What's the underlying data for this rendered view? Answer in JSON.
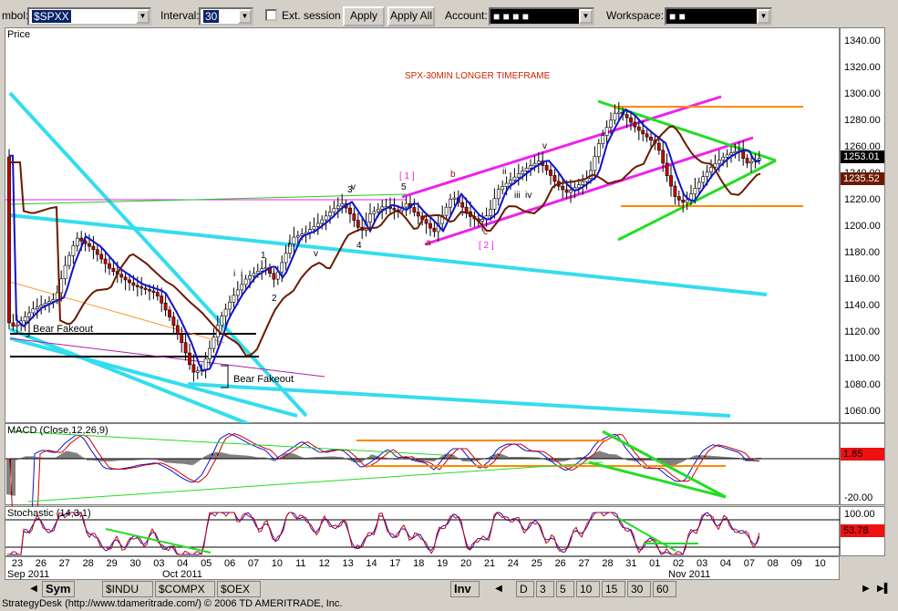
{
  "toolbar": {
    "symbol_label": "mbol:",
    "symbol_value": "$SPXX",
    "interval_label": "Interval:",
    "interval_value": "30",
    "ext_session_label": "Ext. session",
    "apply_label": "Apply",
    "apply_all_label": "Apply All",
    "account_label": "Account:",
    "account_value": "■ ■ ■ ■",
    "workspace_label": "Workspace:",
    "workspace_value": "■ ■"
  },
  "price_panel": {
    "title": "Price",
    "annotation": "SPX-30MIN LONGER TIMEFRAME",
    "yticks": [
      "1340.00",
      "1320.00",
      "1300.00",
      "1280.00",
      "1260.00",
      "1240.00",
      "1220.00",
      "1200.00",
      "1180.00",
      "1160.00",
      "1140.00",
      "1120.00",
      "1100.00",
      "1080.00",
      "1060.00"
    ],
    "last_price": "1253.01",
    "ma_value": "1235.52",
    "labels": {
      "bear1": "Bear Fakeout",
      "bear2": "Bear Fakeout",
      "w1": "1",
      "w2": "2",
      "w3": "3",
      "w4": "4",
      "w5": "5",
      "bk1": "[ 1 ]",
      "bk2": "[ 2 ]",
      "a": "a",
      "b": "b",
      "c": "c",
      "i1": "i",
      "i2": "i",
      "i3": "i",
      "ii": "ii",
      "iii": "iii",
      "iv": "iv",
      "v1": "v",
      "v2": "v",
      "v3": "v"
    }
  },
  "macd_panel": {
    "title": "MACD (Close,12,26,9)",
    "value": "1.85",
    "ytick_low": "-20.00"
  },
  "stoch_panel": {
    "title": "Stochastic (14,3,1)",
    "ytick_high": "100.00",
    "value": "53.78"
  },
  "xaxis": {
    "ticks": [
      "23",
      "26",
      "27",
      "28",
      "29",
      "30",
      "03",
      "04",
      "05",
      "06",
      "07",
      "10",
      "11",
      "12",
      "13",
      "14",
      "17",
      "18",
      "19",
      "20",
      "21",
      "24",
      "25",
      "26",
      "27",
      "28",
      "31",
      "01",
      "02",
      "03",
      "04",
      "07",
      "08",
      "09",
      "10"
    ],
    "month1": "Sep 2011",
    "month2": "Oct 2011",
    "month3": "Nov 2011"
  },
  "tabs": {
    "sym": "Sym",
    "indu": "$INDU",
    "compx": "$COMPX",
    "oex": "$OEX",
    "inv": "Inv",
    "d": "D",
    "i3": "3",
    "i5": "5",
    "i10": "10",
    "i15": "15",
    "i30": "30",
    "i60": "60"
  },
  "status_text": "StrategyDesk (http://www.tdameritrade.com/) © 2006 TD AMERITRADE, Inc.",
  "colors": {
    "channel": "#33ddee",
    "green": "#22dd22",
    "magenta": "#ee22ee",
    "orange": "#ff8800",
    "ma": "#6b1a00",
    "ema": "#1111cc",
    "bear": "#cc0000",
    "annot": "#cc2200"
  }
}
